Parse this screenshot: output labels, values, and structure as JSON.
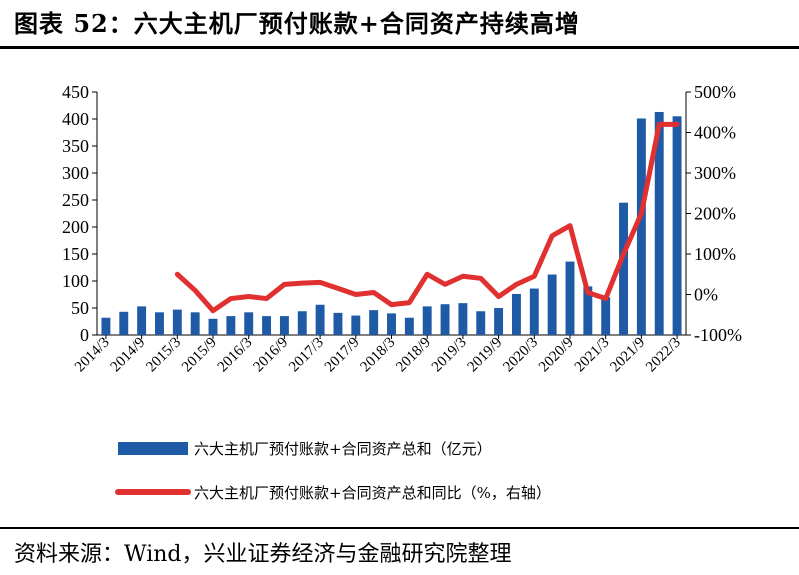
{
  "figure": {
    "title": "图表 52：六大主机厂预付账款+合同资产持续高增",
    "source": "资料来源：Wind，兴业证券经济与金融研究院整理"
  },
  "colors": {
    "bar": "#1F5AA6",
    "line": "#E03030",
    "axis": "#000000"
  },
  "chart_data": {
    "type": "bar",
    "x": [
      "2014/3",
      "2014/6",
      "2014/9",
      "2014/12",
      "2015/3",
      "2015/6",
      "2015/9",
      "2015/12",
      "2016/3",
      "2016/6",
      "2016/9",
      "2016/12",
      "2017/3",
      "2017/6",
      "2017/9",
      "2017/12",
      "2018/3",
      "2018/6",
      "2018/9",
      "2018/12",
      "2019/3",
      "2019/6",
      "2019/9",
      "2019/12",
      "2020/3",
      "2020/6",
      "2020/9",
      "2020/12",
      "2021/3",
      "2021/6",
      "2021/9",
      "2021/12",
      "2022/3"
    ],
    "x_tick_labels": [
      "2014/3",
      "2014/9",
      "2015/3",
      "2015/9",
      "2016/3",
      "2016/9",
      "2017/3",
      "2017/9",
      "2018/3",
      "2018/9",
      "2019/3",
      "2019/9",
      "2020/3",
      "2020/9",
      "2021/3",
      "2021/9",
      "2022/3"
    ],
    "series": [
      {
        "name": "六大主机厂预付账款+合同资产总和（亿元）",
        "type": "bar",
        "axis": "left",
        "values": [
          32,
          43,
          53,
          42,
          47,
          42,
          30,
          35,
          42,
          35,
          35,
          44,
          56,
          41,
          36,
          46,
          40,
          32,
          53,
          57,
          59,
          44,
          50,
          76,
          86,
          112,
          136,
          90,
          70,
          245,
          401,
          413,
          405
        ]
      },
      {
        "name": "六大主机厂预付账款+合同资产总和同比（%，右轴）",
        "type": "line",
        "axis": "right",
        "values": [
          null,
          null,
          null,
          null,
          50,
          10,
          -40,
          -10,
          -5,
          -10,
          25,
          28,
          30,
          15,
          0,
          5,
          -25,
          -20,
          50,
          25,
          45,
          40,
          -5,
          25,
          45,
          145,
          170,
          5,
          -10,
          100,
          200,
          420,
          420
        ]
      }
    ],
    "left_axis": {
      "ticks": [
        "0",
        "50",
        "100",
        "150",
        "200",
        "250",
        "300",
        "350",
        "400",
        "450"
      ],
      "ylim": [
        0,
        450
      ]
    },
    "right_axis": {
      "ticks": [
        "-100%",
        "0%",
        "100%",
        "200%",
        "300%",
        "400%",
        "500%"
      ],
      "ylim": [
        -100,
        500
      ]
    },
    "legend": {
      "placement": "bottom"
    }
  }
}
